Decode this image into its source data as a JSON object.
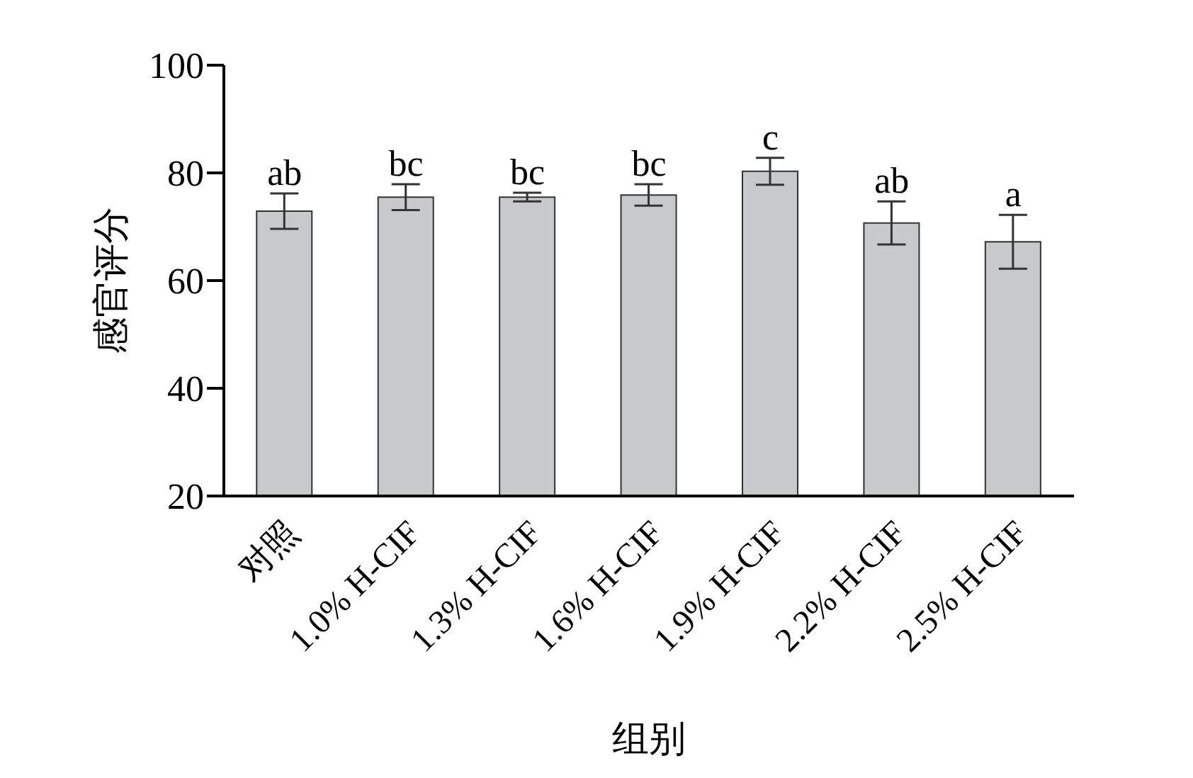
{
  "chart_data": {
    "type": "bar",
    "xlabel": "组别",
    "ylabel": "感官评分",
    "categories": [
      "对照",
      "1.0% H-CIF",
      "1.3% H-CIF",
      "1.6% H-CIF",
      "1.9% H-CIF",
      "2.2% H-CIF",
      "2.5% H-CIF"
    ],
    "values": [
      72.9,
      75.5,
      75.5,
      75.9,
      80.3,
      70.7,
      67.2
    ],
    "errors": [
      3.3,
      2.4,
      0.8,
      2,
      2.5,
      4,
      5
    ],
    "color": "#c8c9cb",
    "ylim": [
      20,
      100
    ],
    "yticks": [
      20,
      40,
      60,
      80,
      100
    ],
    "grid": false,
    "legend": false,
    "annotations": [
      {
        "text": "ab",
        "x": "对照",
        "y": 76.2
      },
      {
        "text": "bc",
        "x": "1.0% H-CIF",
        "y": 77.9
      },
      {
        "text": "bc",
        "x": "1.3% H-CIF",
        "y": 76.3
      },
      {
        "text": "bc",
        "x": "1.6% H-CIF",
        "y": 77.9
      },
      {
        "text": "c",
        "x": "1.9% H-CIF",
        "y": 82.8
      },
      {
        "text": "ab",
        "x": "2.2% H-CIF",
        "y": 74.7
      },
      {
        "text": "a",
        "x": "2.5% H-CIF",
        "y": 72.2
      }
    ]
  }
}
